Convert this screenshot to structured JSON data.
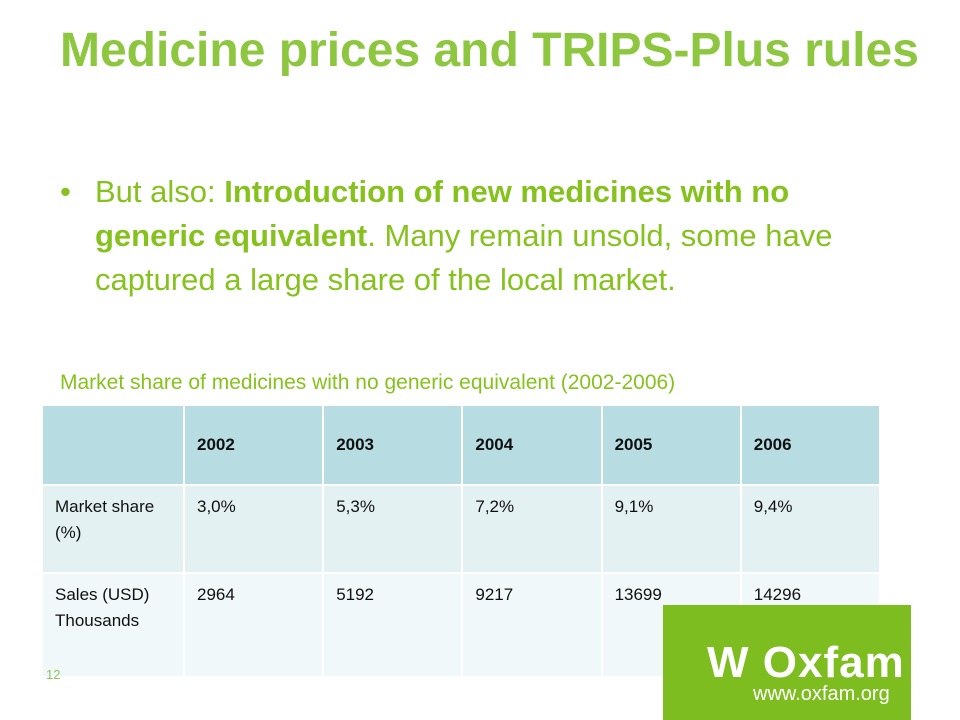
{
  "slide": {
    "title": "Medicine prices and TRIPS-Plus rules",
    "bullet": {
      "marker": "•",
      "prefix": "But also: ",
      "bold": "Introduction of new medicines with no generic equivalent",
      "rest": ". Many remain unsold, some have captured a large share of the local market."
    },
    "caption": "Market share of medicines with no generic equivalent (2002-2006)",
    "table": {
      "corner": "",
      "headers": [
        "2002",
        "2003",
        "2004",
        "2005",
        "2006"
      ],
      "rows": [
        {
          "label": "Market share (%)",
          "values": [
            "3,0%",
            "5,3%",
            "7,2%",
            "9,1%",
            "9,4%"
          ]
        },
        {
          "label": "Sales (USD) Thousands",
          "values": [
            "2964",
            "5192",
            "9217",
            "13699",
            "14296"
          ]
        }
      ]
    },
    "page_number": "12",
    "footer": {
      "logo_text": "W Oxfam",
      "url": "www.oxfam.org"
    }
  },
  "colors": {
    "title_green": "#8dc63f",
    "body_green": "#86c21e",
    "header_fill": "#b7dde3",
    "row1_fill": "#e3f1f3",
    "row2_fill": "#f0f8f9",
    "oxfam_green": "#7dbd1f"
  }
}
